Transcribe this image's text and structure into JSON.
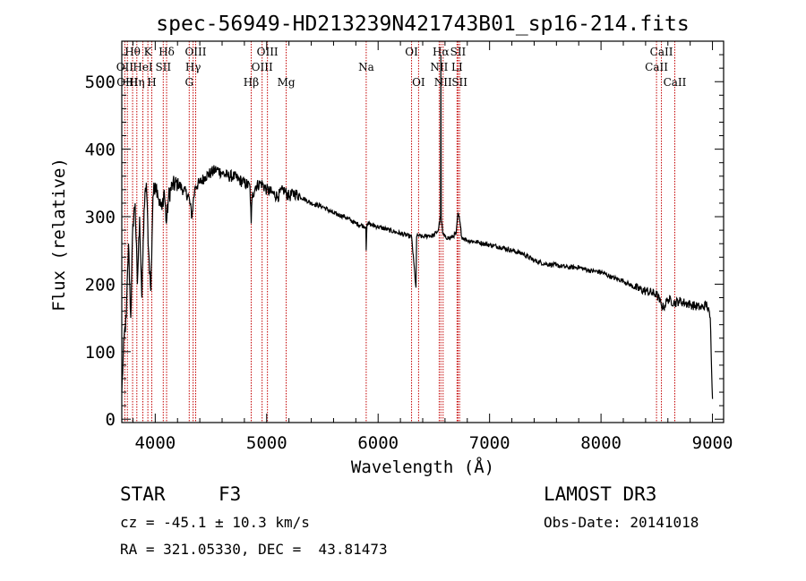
{
  "chart_data": {
    "type": "line",
    "title": "spec-56949-HD213239N421743B01_sp16-214.fits",
    "xlabel": "Wavelength (Å)",
    "ylabel": "Flux (relative)",
    "xlim": [
      3700,
      9100
    ],
    "ylim": [
      -5,
      560
    ],
    "x_ticks": [
      4000,
      5000,
      6000,
      7000,
      8000,
      9000
    ],
    "y_ticks": [
      0,
      100,
      200,
      300,
      400,
      500
    ],
    "series": [
      {
        "name": "flux",
        "x": [
          3700,
          3720,
          3740,
          3760,
          3780,
          3800,
          3820,
          3840,
          3860,
          3880,
          3900,
          3920,
          3940,
          3960,
          3980,
          4000,
          4020,
          4040,
          4060,
          4080,
          4100,
          4120,
          4150,
          4200,
          4250,
          4300,
          4330,
          4340,
          4360,
          4400,
          4450,
          4500,
          4550,
          4600,
          4650,
          4700,
          4750,
          4800,
          4850,
          4861,
          4870,
          4900,
          4950,
          5000,
          5050,
          5100,
          5150,
          5200,
          5250,
          5300,
          5400,
          5500,
          5600,
          5700,
          5800,
          5890,
          5893,
          5900,
          6000,
          6100,
          6200,
          6300,
          6340,
          6345,
          6360,
          6400,
          6450,
          6500,
          6540,
          6560,
          6563,
          6566,
          6580,
          6600,
          6650,
          6700,
          6717,
          6731,
          6750,
          6800,
          6900,
          7000,
          7100,
          7200,
          7300,
          7400,
          7500,
          7600,
          7700,
          7800,
          7900,
          8000,
          8100,
          8200,
          8300,
          8400,
          8500,
          8540,
          8560,
          8600,
          8660,
          8700,
          8800,
          8900,
          8950,
          8980,
          9000
        ],
        "values": [
          40,
          120,
          150,
          260,
          150,
          290,
          320,
          200,
          300,
          180,
          310,
          350,
          250,
          190,
          330,
          350,
          340,
          320,
          310,
          340,
          290,
          330,
          345,
          350,
          340,
          330,
          300,
          320,
          345,
          350,
          360,
          365,
          370,
          365,
          360,
          360,
          355,
          350,
          345,
          290,
          330,
          345,
          350,
          340,
          335,
          330,
          340,
          330,
          335,
          330,
          320,
          315,
          305,
          300,
          290,
          285,
          250,
          290,
          285,
          280,
          275,
          270,
          195,
          270,
          272,
          270,
          272,
          272,
          280,
          300,
          540,
          300,
          275,
          270,
          268,
          275,
          305,
          295,
          270,
          265,
          262,
          258,
          255,
          250,
          245,
          235,
          230,
          228,
          225,
          225,
          220,
          218,
          210,
          205,
          195,
          190,
          185,
          170,
          165,
          178,
          172,
          175,
          170,
          165,
          170,
          150,
          30
        ]
      }
    ],
    "lines": [
      {
        "label": "Hθ",
        "x": 3797,
        "row": 0
      },
      {
        "label": "OII",
        "x": 3727,
        "row": 1
      },
      {
        "label": "OIII",
        "x": 3750,
        "row": 2
      },
      {
        "label": "K",
        "x": 3934,
        "row": 0
      },
      {
        "label": "HeI",
        "x": 3889,
        "row": 1
      },
      {
        "label": "Hη",
        "x": 3835,
        "row": 2
      },
      {
        "label": "Hδ",
        "x": 4102,
        "row": 0
      },
      {
        "label": "SII",
        "x": 4072,
        "row": 1
      },
      {
        "label": "H",
        "x": 3969,
        "row": 2
      },
      {
        "label": "OIII",
        "x": 4363,
        "row": 0
      },
      {
        "label": "Hγ",
        "x": 4340,
        "row": 1
      },
      {
        "label": "G",
        "x": 4305,
        "row": 2
      },
      {
        "label": "OIII",
        "x": 5007,
        "row": 0
      },
      {
        "label": "OIII",
        "x": 4959,
        "row": 1
      },
      {
        "label": "Hβ",
        "x": 4861,
        "row": 2
      },
      {
        "label": "Mg",
        "x": 5175,
        "row": 2
      },
      {
        "label": "Na",
        "x": 5893,
        "row": 1
      },
      {
        "label": "OI",
        "x": 6300,
        "row": 0
      },
      {
        "label": "OI",
        "x": 6363,
        "row": 2
      },
      {
        "label": "Hα",
        "x": 6563,
        "row": 0
      },
      {
        "label": "NII",
        "x": 6548,
        "row": 1
      },
      {
        "label": "NII",
        "x": 6583,
        "row": 2
      },
      {
        "label": "SII",
        "x": 6717,
        "row": 0
      },
      {
        "label": "LI",
        "x": 6708,
        "row": 1
      },
      {
        "label": "SII",
        "x": 6731,
        "row": 2
      },
      {
        "label": "CaII",
        "x": 8542,
        "row": 0
      },
      {
        "label": "CaII",
        "x": 8498,
        "row": 1
      },
      {
        "label": "CaII",
        "x": 8662,
        "row": 2
      }
    ],
    "line_color": "#c40000"
  },
  "info": {
    "object_class": "STAR",
    "subclass": "F3",
    "survey": "LAMOST DR3",
    "cz": "cz = -45.1 ± 10.3 km/s",
    "obs_date": "Obs-Date: 20141018",
    "coords": "RA = 321.05330, DEC =  43.81473"
  }
}
